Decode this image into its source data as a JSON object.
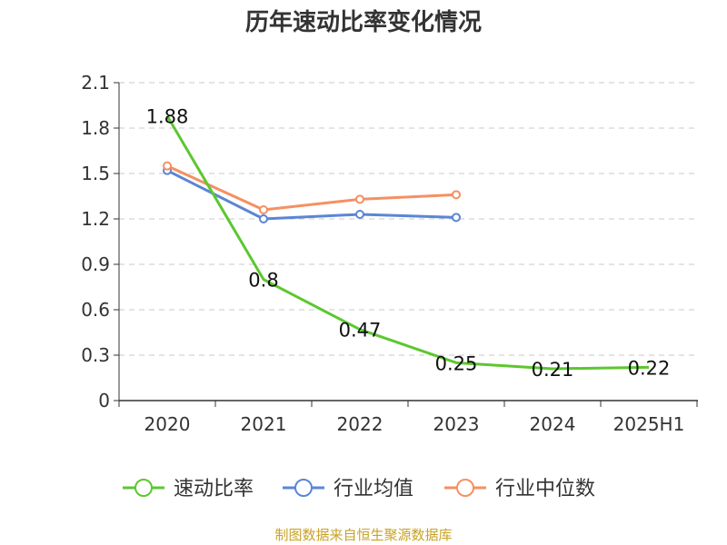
{
  "chart_data": {
    "type": "line",
    "title": "历年速动比率变化情况",
    "categories": [
      "2020",
      "2021",
      "2022",
      "2023",
      "2024",
      "2025H1"
    ],
    "ylim": [
      0,
      2.1
    ],
    "yticks": [
      "0",
      "0.3",
      "0.6",
      "0.9",
      "1.2",
      "1.5",
      "1.8",
      "2.1"
    ],
    "grid": true,
    "legend_position": "bottom",
    "series": [
      {
        "name": "速动比率",
        "color": "#5cc72f",
        "values": [
          1.88,
          0.8,
          0.47,
          0.25,
          0.21,
          0.22
        ],
        "labels": [
          "1.88",
          "0.8",
          "0.47",
          "0.25",
          "0.21",
          "0.22"
        ],
        "show_markers": false
      },
      {
        "name": "行业均值",
        "color": "#5b86d6",
        "values": [
          1.52,
          1.2,
          1.23,
          1.21,
          null,
          null
        ],
        "show_markers": true
      },
      {
        "name": "行业中位数",
        "color": "#f59062",
        "values": [
          1.55,
          1.26,
          1.33,
          1.36,
          null,
          null
        ],
        "show_markers": true
      }
    ],
    "source": "制图数据来自恒生聚源数据库"
  }
}
